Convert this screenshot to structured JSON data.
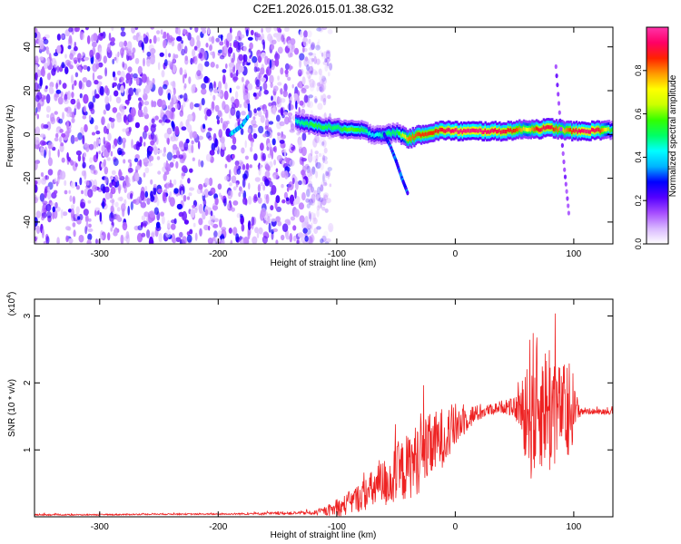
{
  "title": "C2E1.2026.015.01.38.G32",
  "chart_data": [
    {
      "type": "heatmap",
      "name": "spectrogram",
      "xlabel": "Height of straight line (km)",
      "ylabel": "Frequency (Hz)",
      "xlim": [
        -355,
        133
      ],
      "ylim": [
        -50,
        49
      ],
      "xticks": [
        -300,
        -200,
        -100,
        0,
        100
      ],
      "yticks": [
        -40,
        -20,
        0,
        20,
        40
      ],
      "colorbar": {
        "label": "Normalized spectral amplitude",
        "range": [
          0,
          1
        ],
        "ticks": [
          0.0,
          0.2,
          0.4,
          0.6,
          0.8
        ],
        "colors": [
          "#ffffff",
          "#d9b8ff",
          "#a64dff",
          "#5500ff",
          "#0000ff",
          "#00b4ff",
          "#00ffff",
          "#00ff66",
          "#33ff00",
          "#ccff00",
          "#ffff00",
          "#ff9900",
          "#ff2200",
          "#ff0066",
          "#ff33aa"
        ]
      },
      "noise_region": {
        "x_range": [
          -355,
          -125
        ],
        "y_range": [
          -50,
          49
        ]
      },
      "ridge": {
        "x": [
          -135,
          -120,
          -100,
          -90,
          -80,
          -70,
          -60,
          -50,
          -40,
          -30,
          -20,
          -10,
          0,
          20,
          40,
          50,
          60,
          70,
          80,
          90,
          100,
          110,
          120,
          133
        ],
        "y": [
          6,
          4,
          3,
          2,
          2,
          0,
          0,
          1,
          -2,
          0,
          1,
          2,
          1.5,
          1.5,
          1.5,
          2,
          2.5,
          2.5,
          3,
          2,
          1.5,
          1.5,
          2,
          2
        ],
        "amplitude": [
          0.45,
          0.55,
          0.5,
          0.6,
          0.55,
          0.4,
          0.5,
          0.5,
          0.8,
          0.85,
          0.85,
          0.9,
          0.95,
          0.95,
          0.9,
          0.85,
          0.7,
          0.9,
          0.9,
          0.75,
          0.9,
          0.95,
          0.9,
          0.5
        ]
      },
      "branches": [
        {
          "x": [
            -60,
            -55,
            -50,
            -45,
            -40
          ],
          "y": [
            0,
            -5,
            -12,
            -20,
            -27
          ],
          "amplitude": 0.35
        },
        {
          "x": [
            -190,
            -180,
            -175
          ],
          "y": [
            0,
            4,
            8
          ],
          "amplitude": 0.45
        },
        {
          "x": [
            85,
            88,
            92,
            96
          ],
          "y": [
            31,
            10,
            -15,
            -37
          ],
          "amplitude": 0.2
        }
      ]
    },
    {
      "type": "line",
      "name": "snr",
      "xlabel": "Height of straight line (km)",
      "ylabel": "SNR (10 * v/v)",
      "y_scale_label": "(x10^4)",
      "y_scale_base": "(x10",
      "y_scale_exp": "4",
      "y_scale_close": ")",
      "xlim": [
        -355,
        133
      ],
      "ylim": [
        0,
        3.25
      ],
      "xticks": [
        -300,
        -200,
        -100,
        0,
        100
      ],
      "yticks": [
        1,
        2,
        3
      ],
      "series": [
        {
          "name": "SNR",
          "color": "#ee2222",
          "x": [
            -355,
            -300,
            -250,
            -200,
            -150,
            -120,
            -110,
            -100,
            -90,
            -80,
            -70,
            -60,
            -50,
            -40,
            -30,
            -20,
            -10,
            0,
            10,
            20,
            30,
            40,
            50,
            55,
            60,
            65,
            70,
            75,
            80,
            85,
            90,
            95,
            100,
            105,
            110,
            120,
            133
          ],
          "y": [
            0.03,
            0.03,
            0.04,
            0.04,
            0.05,
            0.06,
            0.08,
            0.12,
            0.2,
            0.3,
            0.4,
            0.5,
            0.6,
            0.75,
            0.9,
            1.05,
            1.2,
            1.35,
            1.48,
            1.55,
            1.6,
            1.65,
            1.62,
            1.6,
            1.65,
            1.65,
            1.65,
            1.65,
            1.65,
            1.62,
            1.6,
            1.6,
            1.58,
            1.58,
            1.58,
            1.57,
            1.57
          ],
          "spread": [
            0.01,
            0.01,
            0.01,
            0.01,
            0.02,
            0.03,
            0.06,
            0.12,
            0.18,
            0.22,
            0.3,
            0.38,
            0.45,
            0.5,
            0.55,
            0.5,
            0.45,
            0.35,
            0.2,
            0.12,
            0.08,
            0.1,
            0.15,
            0.3,
            0.9,
            1.2,
            1.0,
            0.9,
            1.1,
            0.8,
            0.6,
            0.9,
            0.4,
            0.1,
            0.05,
            0.04,
            0.04
          ]
        }
      ]
    }
  ]
}
